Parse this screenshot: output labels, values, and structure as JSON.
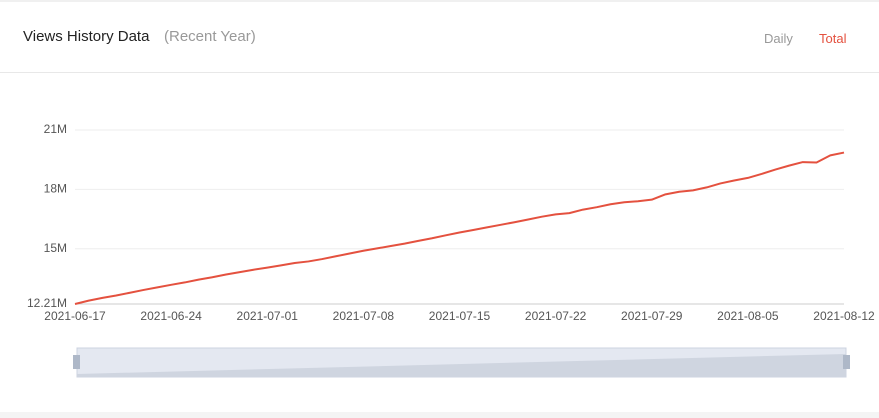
{
  "header": {
    "title": "Views History Data",
    "subtitle": "(Recent Year)",
    "tabs": [
      "Daily",
      "Total"
    ]
  },
  "chart_data": {
    "type": "line",
    "x": [
      "2021-06-17",
      "2021-06-18",
      "2021-06-19",
      "2021-06-20",
      "2021-06-21",
      "2021-06-22",
      "2021-06-23",
      "2021-06-24",
      "2021-06-25",
      "2021-06-26",
      "2021-06-27",
      "2021-06-28",
      "2021-06-29",
      "2021-06-30",
      "2021-07-01",
      "2021-07-02",
      "2021-07-03",
      "2021-07-04",
      "2021-07-05",
      "2021-07-06",
      "2021-07-07",
      "2021-07-08",
      "2021-07-09",
      "2021-07-10",
      "2021-07-11",
      "2021-07-12",
      "2021-07-13",
      "2021-07-14",
      "2021-07-15",
      "2021-07-16",
      "2021-07-17",
      "2021-07-18",
      "2021-07-19",
      "2021-07-20",
      "2021-07-21",
      "2021-07-22",
      "2021-07-23",
      "2021-07-24",
      "2021-07-25",
      "2021-07-26",
      "2021-07-27",
      "2021-07-28",
      "2021-07-29",
      "2021-07-30",
      "2021-07-31",
      "2021-08-01",
      "2021-08-02",
      "2021-08-03",
      "2021-08-04",
      "2021-08-05",
      "2021-08-06",
      "2021-08-07",
      "2021-08-08",
      "2021-08-09",
      "2021-08-10",
      "2021-08-11",
      "2021-08-12"
    ],
    "values": [
      12.21,
      12.38,
      12.52,
      12.64,
      12.78,
      12.92,
      13.05,
      13.18,
      13.3,
      13.44,
      13.56,
      13.7,
      13.82,
      13.94,
      14.05,
      14.16,
      14.28,
      14.36,
      14.48,
      14.62,
      14.76,
      14.9,
      15.02,
      15.14,
      15.26,
      15.4,
      15.53,
      15.68,
      15.82,
      15.95,
      16.08,
      16.21,
      16.34,
      16.48,
      16.62,
      16.74,
      16.8,
      16.98,
      17.1,
      17.25,
      17.35,
      17.4,
      17.48,
      17.75,
      17.88,
      17.95,
      18.1,
      18.3,
      18.45,
      18.58,
      18.78,
      19.0,
      19.2,
      19.38,
      19.36,
      19.72,
      19.86
    ],
    "color": "#e4513f",
    "xticks": [
      "2021-06-17",
      "2021-06-24",
      "2021-07-01",
      "2021-07-08",
      "2021-07-15",
      "2021-07-22",
      "2021-07-29",
      "2021-08-05",
      "2021-08-12"
    ],
    "ylim": [
      12.21,
      21
    ],
    "yticks": [
      {
        "value": 12.21,
        "label": "12.21M"
      },
      {
        "value": 15,
        "label": "15M"
      },
      {
        "value": 18,
        "label": "18M"
      },
      {
        "value": 21,
        "label": "21M"
      }
    ],
    "grid": true
  }
}
